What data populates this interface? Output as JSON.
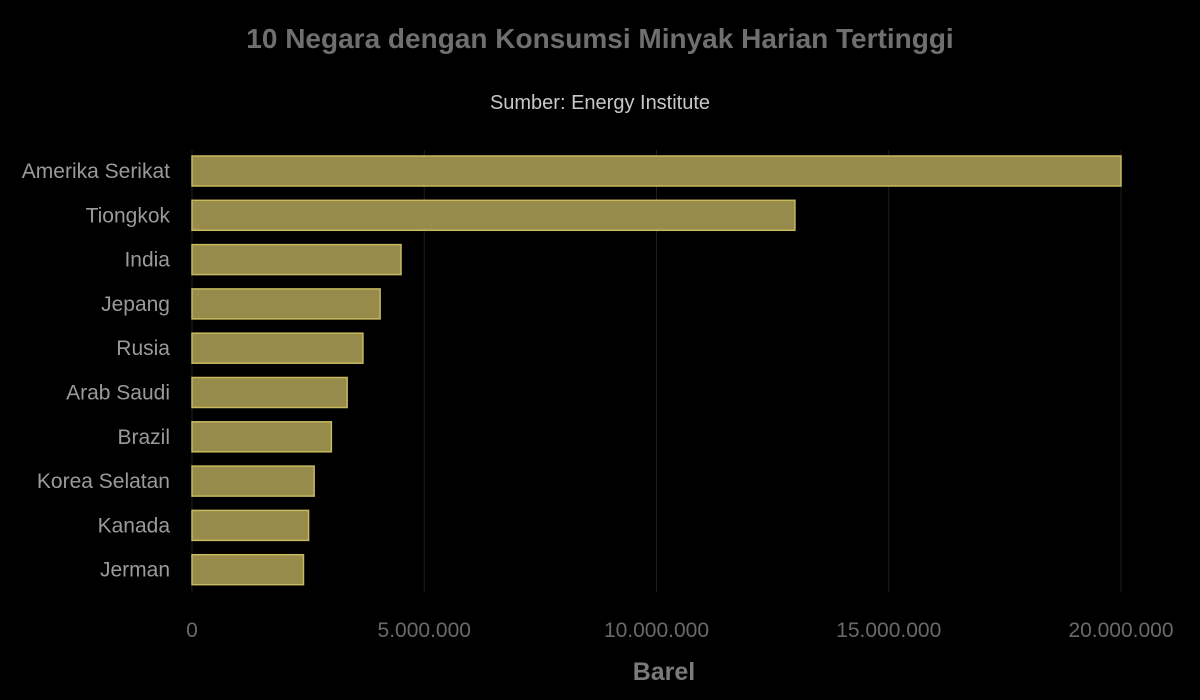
{
  "chart_data": {
    "type": "bar",
    "orientation": "horizontal",
    "title": "10 Negara dengan Konsumsi Minyak Harian Tertinggi",
    "subtitle": "Sumber: Energy Institute",
    "xlabel": "Barel",
    "ylabel": "",
    "xlim": [
      0,
      20000000
    ],
    "xticks": [
      0,
      5000000,
      10000000,
      15000000,
      20000000
    ],
    "xtick_labels": [
      "0",
      "5.000.000",
      "10.000.000",
      "15.000.000",
      "20.000.000"
    ],
    "categories": [
      "Amerika Serikat",
      "Tiongkok",
      "India",
      "Jepang",
      "Rusia",
      "Arab Saudi",
      "Brazil",
      "Korea Selatan",
      "Kanada",
      "Jerman"
    ],
    "values": [
      20000000,
      12980000,
      4500000,
      4050000,
      3680000,
      3340000,
      3000000,
      2630000,
      2510000,
      2400000
    ],
    "grid": true,
    "legend": "none",
    "colors": {
      "background": "#000000",
      "bar_fill": "#978b4b",
      "bar_stroke": "#c8b85e"
    }
  }
}
